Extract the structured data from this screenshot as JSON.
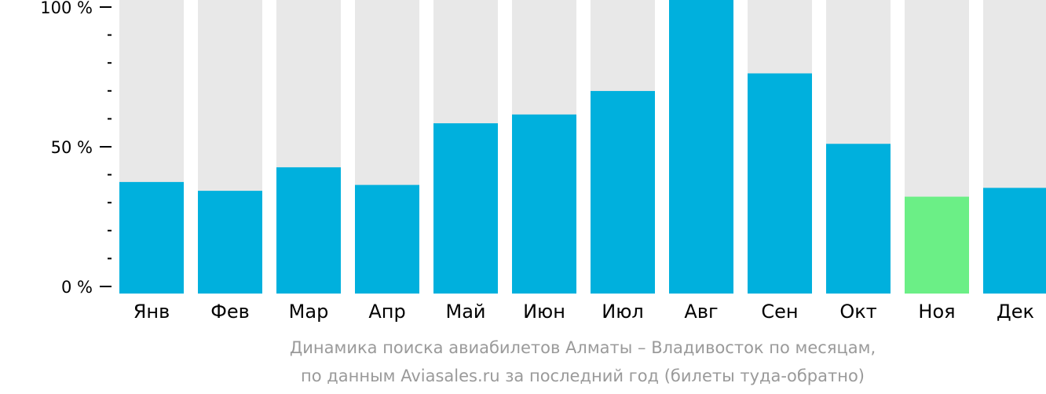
{
  "chart_data": {
    "type": "bar",
    "categories": [
      "Янв",
      "Фев",
      "Мар",
      "Апр",
      "Май",
      "Июн",
      "Июл",
      "Авг",
      "Сен",
      "Окт",
      "Ноя",
      "Дек"
    ],
    "series": [
      {
        "values": [
          38,
          35,
          43,
          37,
          58,
          61,
          69,
          100,
          75,
          51,
          33,
          36
        ]
      }
    ],
    "highlight_index": 10,
    "ylim": [
      0,
      100
    ],
    "y_ticks": [
      {
        "value": 100,
        "label": "100 %"
      },
      {
        "value": 50,
        "label": "50 %"
      },
      {
        "value": 0,
        "label": "0 %"
      }
    ],
    "y_minor_ticks": [
      10,
      20,
      30,
      40,
      60,
      70,
      80,
      90
    ],
    "caption": [
      "Динамика поиска авиабилетов Алматы – Владивосток по месяцам,",
      "по данным Aviasales.ru за последний год (билеты туда-обратно)"
    ],
    "colors": {
      "bar": "#00b0dd",
      "bar_highlight": "#6bef86",
      "bar_background": "#e8e8e8",
      "axis": "#000000",
      "caption": "#9a9a9a"
    }
  }
}
